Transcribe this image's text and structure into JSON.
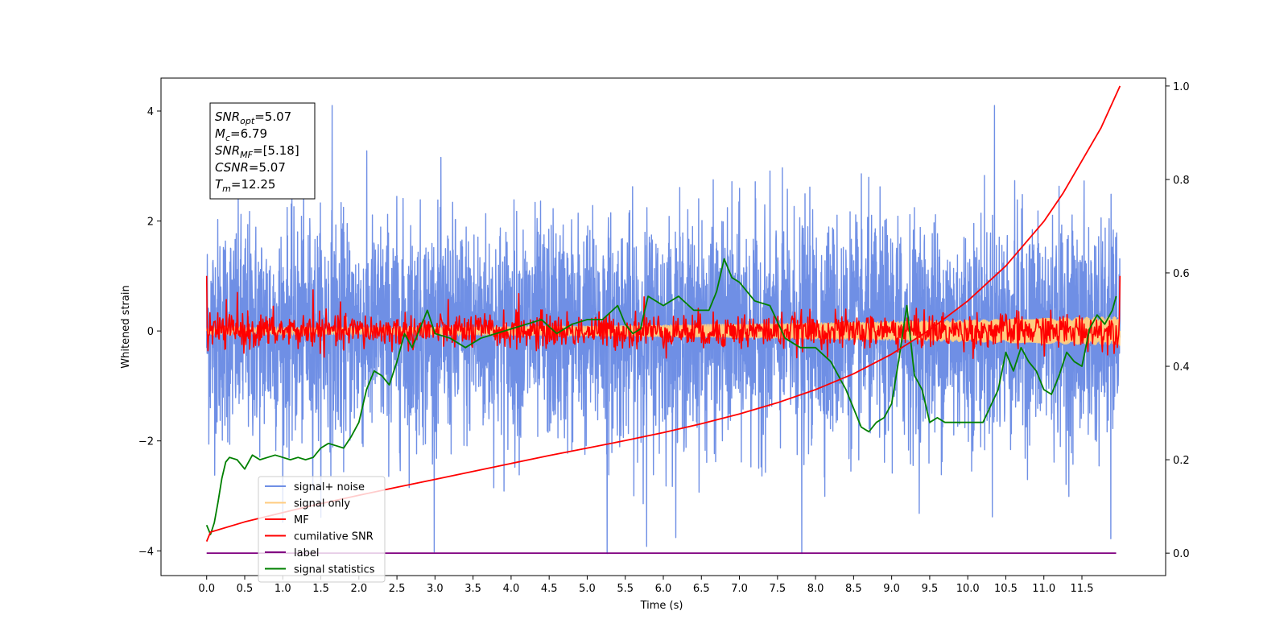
{
  "chart_data": {
    "type": "line",
    "xlabel": "Time (s)",
    "ylabel": "Whitened strain",
    "xlim": [
      -0.6,
      12.6
    ],
    "ylim": [
      -4.45,
      4.6
    ],
    "y2lim": [
      -0.048,
      1.017
    ],
    "x_ticks": [
      0.0,
      0.5,
      1.0,
      1.5,
      2.0,
      2.5,
      3.0,
      3.5,
      4.0,
      4.5,
      5.0,
      5.5,
      6.0,
      6.5,
      7.0,
      7.5,
      8.0,
      8.5,
      9.0,
      9.5,
      10.0,
      10.5,
      11.0,
      11.5
    ],
    "x_tick_labels": [
      "0.0",
      "0.5",
      "1.0",
      "1.5",
      "2.0",
      "2.5",
      "3.0",
      "3.5",
      "4.0",
      "4.5",
      "5.0",
      "5.5",
      "6.0",
      "6.5",
      "7.0",
      "7.5",
      "8.0",
      "8.5",
      "9.0",
      "9.5",
      "10.0",
      "10.5",
      "11.0",
      "11.5"
    ],
    "y_ticks": [
      -4,
      -2,
      0,
      2,
      4
    ],
    "y_tick_labels": [
      "−4",
      "−2",
      "0",
      "2",
      "4"
    ],
    "y2_ticks": [
      0.0,
      0.2,
      0.4,
      0.6,
      0.8,
      1.0
    ],
    "y2_tick_labels": [
      "0.0",
      "0.2",
      "0.4",
      "0.6",
      "0.8",
      "1.0"
    ],
    "grid": false,
    "legend_position": "lower-left",
    "annotation": {
      "lines": [
        {
          "main": "SNR",
          "sub": "opt",
          "rest": "=5.07"
        },
        {
          "main": "M",
          "sub": "c",
          "rest": "=6.79"
        },
        {
          "main": "SNR",
          "sub": "MF",
          "rest": "=[5.18]"
        },
        {
          "main": "CSNR",
          "sub": "",
          "rest": "=5.07"
        },
        {
          "main": "T",
          "sub": "m",
          "rest": "=12.25"
        }
      ]
    },
    "series": [
      {
        "name": "signal+ noise",
        "color": "#6f8fe5",
        "kind": "noise",
        "axis": "left",
        "x_range": [
          0.0,
          12.0
        ],
        "sigma": 1.0,
        "extremes": [
          [
            1.65,
            4.15
          ],
          [
            10.35,
            4.15
          ],
          [
            5.26,
            -4.05
          ],
          [
            7.82,
            -4.05
          ],
          [
            5.78,
            -3.92
          ],
          [
            11.88,
            -3.78
          ]
        ]
      },
      {
        "name": "signal only",
        "color": "#ffcc80",
        "kind": "chirp",
        "axis": "left",
        "x_range": [
          0.0,
          12.0
        ],
        "amp_start": 0.06,
        "amp_end": 0.27
      },
      {
        "name": "MF",
        "color": "#ff0000",
        "kind": "noise",
        "axis": "left",
        "x_range": [
          0.0,
          12.0
        ],
        "sigma": 0.16,
        "extremes": [
          [
            0.0,
            1.0
          ],
          [
            12.0,
            1.0
          ],
          [
            0.4,
            0.7
          ],
          [
            1.4,
            0.75
          ],
          [
            4.1,
            0.68
          ],
          [
            5.75,
            0.62
          ]
        ]
      },
      {
        "name": "cumilative SNR",
        "color": "#ff0000",
        "kind": "line",
        "axis": "right",
        "x": [
          0.0,
          0.05,
          0.5,
          1.0,
          1.5,
          2.0,
          2.5,
          3.0,
          3.5,
          4.0,
          4.5,
          5.0,
          5.5,
          6.0,
          6.5,
          7.0,
          7.5,
          8.0,
          8.5,
          9.0,
          9.5,
          10.0,
          10.5,
          11.0,
          11.25,
          11.5,
          11.75,
          12.0
        ],
        "y": [
          0.025,
          0.045,
          0.067,
          0.087,
          0.106,
          0.124,
          0.141,
          0.158,
          0.175,
          0.192,
          0.209,
          0.225,
          0.241,
          0.258,
          0.277,
          0.298,
          0.322,
          0.35,
          0.384,
          0.426,
          0.478,
          0.54,
          0.615,
          0.71,
          0.77,
          0.84,
          0.91,
          1.0
        ]
      },
      {
        "name": "label",
        "color": "#800080",
        "kind": "line",
        "axis": "right",
        "x": [
          0.0,
          11.95
        ],
        "y": [
          0.0,
          0.0
        ]
      },
      {
        "name": "signal statistics",
        "color": "#008000",
        "kind": "line",
        "axis": "right",
        "x": [
          0.0,
          0.05,
          0.1,
          0.15,
          0.2,
          0.25,
          0.3,
          0.4,
          0.5,
          0.6,
          0.7,
          0.8,
          0.9,
          1.0,
          1.1,
          1.2,
          1.3,
          1.4,
          1.5,
          1.6,
          1.7,
          1.8,
          1.9,
          2.0,
          2.1,
          2.2,
          2.3,
          2.4,
          2.5,
          2.6,
          2.7,
          2.8,
          2.9,
          3.0,
          3.2,
          3.4,
          3.6,
          3.8,
          4.0,
          4.2,
          4.4,
          4.6,
          4.8,
          5.0,
          5.2,
          5.4,
          5.5,
          5.6,
          5.7,
          5.8,
          6.0,
          6.2,
          6.4,
          6.6,
          6.7,
          6.8,
          6.9,
          7.0,
          7.2,
          7.4,
          7.6,
          7.8,
          8.0,
          8.2,
          8.4,
          8.6,
          8.7,
          8.8,
          8.9,
          9.0,
          9.1,
          9.2,
          9.3,
          9.4,
          9.5,
          9.6,
          9.7,
          9.8,
          10.0,
          10.2,
          10.4,
          10.5,
          10.6,
          10.7,
          10.8,
          10.9,
          11.0,
          11.1,
          11.2,
          11.3,
          11.4,
          11.5,
          11.6,
          11.7,
          11.8,
          11.9,
          11.95
        ],
        "y": [
          0.06,
          0.04,
          0.065,
          0.11,
          0.16,
          0.195,
          0.205,
          0.2,
          0.18,
          0.21,
          0.2,
          0.205,
          0.21,
          0.205,
          0.2,
          0.205,
          0.2,
          0.205,
          0.225,
          0.235,
          0.23,
          0.225,
          0.25,
          0.28,
          0.35,
          0.39,
          0.38,
          0.36,
          0.41,
          0.47,
          0.44,
          0.48,
          0.52,
          0.47,
          0.46,
          0.44,
          0.46,
          0.47,
          0.48,
          0.49,
          0.5,
          0.47,
          0.49,
          0.5,
          0.5,
          0.53,
          0.49,
          0.47,
          0.48,
          0.55,
          0.53,
          0.55,
          0.52,
          0.52,
          0.56,
          0.63,
          0.59,
          0.58,
          0.54,
          0.53,
          0.46,
          0.44,
          0.44,
          0.41,
          0.35,
          0.27,
          0.26,
          0.28,
          0.29,
          0.32,
          0.42,
          0.53,
          0.38,
          0.35,
          0.28,
          0.29,
          0.28,
          0.28,
          0.28,
          0.28,
          0.35,
          0.43,
          0.39,
          0.44,
          0.41,
          0.39,
          0.35,
          0.34,
          0.38,
          0.43,
          0.41,
          0.4,
          0.48,
          0.51,
          0.49,
          0.52,
          0.55
        ]
      }
    ]
  }
}
